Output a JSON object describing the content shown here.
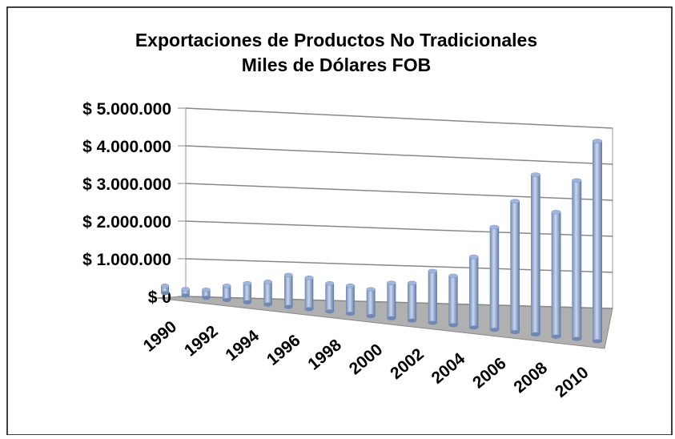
{
  "chart_data": {
    "type": "bar",
    "title": "Exportaciones de Productos No Tradicionales",
    "subtitle": "Miles de Dólares FOB",
    "categories": [
      "1990",
      null,
      "1992",
      null,
      "1994",
      null,
      "1996",
      null,
      "1998",
      null,
      "2000",
      null,
      "2002",
      null,
      "2004",
      null,
      "2006",
      null,
      "2008",
      null,
      "2010",
      null
    ],
    "values": [
      200000,
      170000,
      210000,
      370000,
      490000,
      580000,
      800000,
      780000,
      690000,
      680000,
      640000,
      840000,
      880000,
      1200000,
      1130000,
      1600000,
      2300000,
      2900000,
      3500000,
      2700000,
      3400000,
      4250000
    ],
    "color": "#9fb6dc",
    "ylim": [
      0,
      5000000
    ],
    "yticks": [
      {
        "value": 0,
        "label": "$ 0"
      },
      {
        "value": 1000000,
        "label": "$ 1.000.000"
      },
      {
        "value": 2000000,
        "label": "$ 2.000.000"
      },
      {
        "value": 3000000,
        "label": "$ 3.000.000"
      },
      {
        "value": 4000000,
        "label": "$ 4.000.000"
      },
      {
        "value": 5000000,
        "label": "$ 5.000.000"
      }
    ],
    "grid": true
  }
}
